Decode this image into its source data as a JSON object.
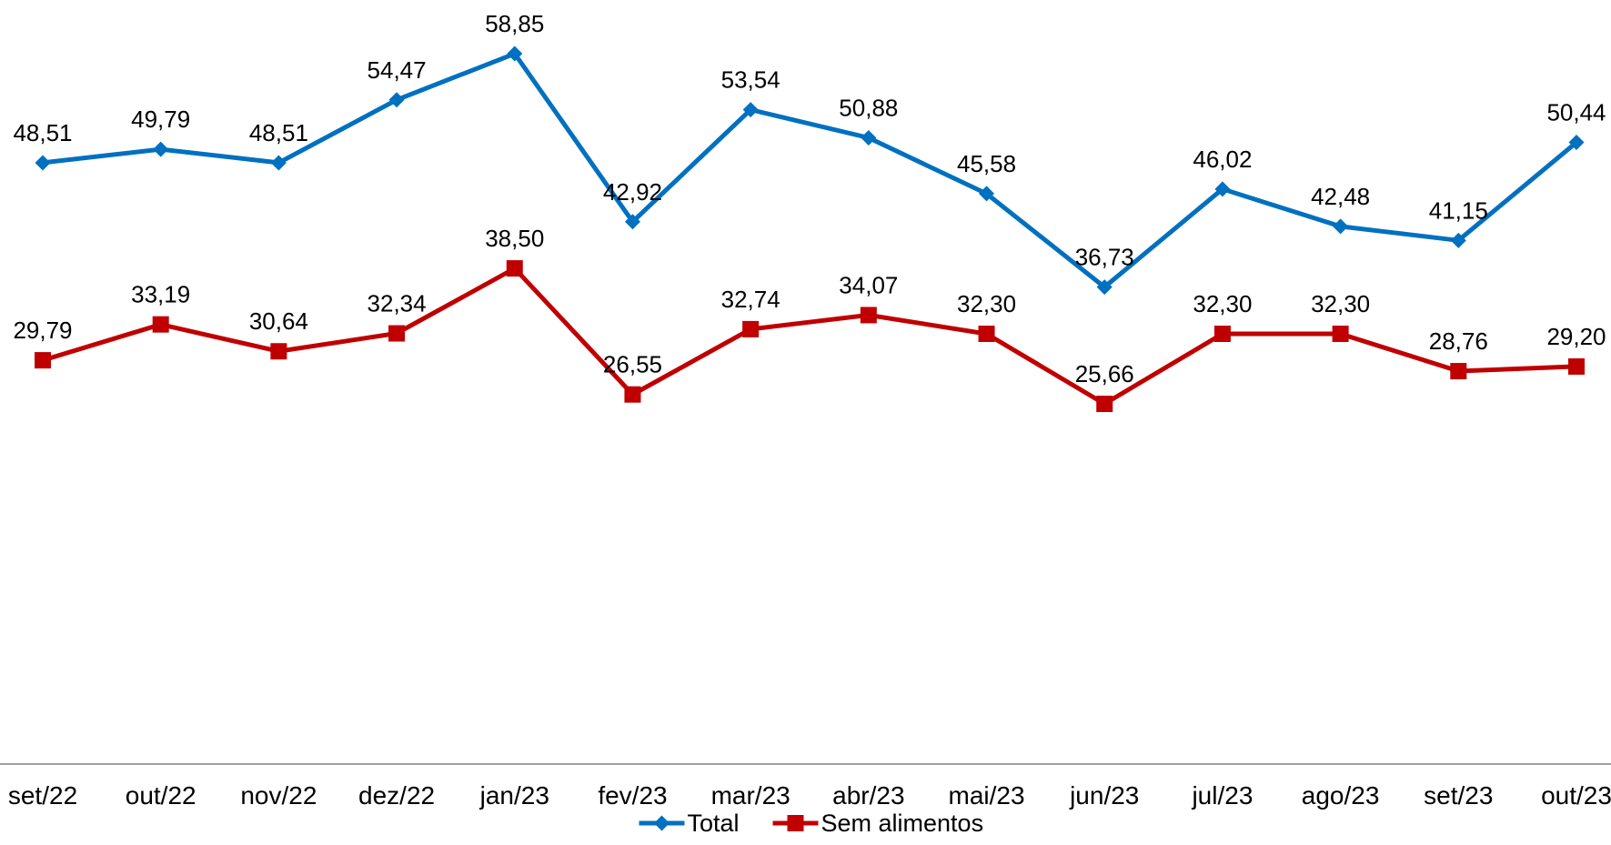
{
  "chart_data": {
    "type": "line",
    "categories": [
      "set/22",
      "out/22",
      "nov/22",
      "dez/22",
      "jan/23",
      "fev/23",
      "mar/23",
      "abr/23",
      "mai/23",
      "jun/23",
      "jul/23",
      "ago/23",
      "set/23",
      "out/23"
    ],
    "series": [
      {
        "name": "Total",
        "color": "#0070C0",
        "marker": "diamond",
        "values": [
          48.51,
          49.79,
          48.51,
          54.47,
          58.85,
          42.92,
          53.54,
          50.88,
          45.58,
          36.73,
          46.02,
          42.48,
          41.15,
          50.44
        ],
        "labels": [
          "48,51",
          "49,79",
          "48,51",
          "54,47",
          "58,85",
          "42,92",
          "53,54",
          "50,88",
          "45,58",
          "36,73",
          "46,02",
          "42,48",
          "41,15",
          "50,44"
        ]
      },
      {
        "name": "Sem alimentos",
        "color": "#C00000",
        "marker": "square",
        "values": [
          29.79,
          33.19,
          30.64,
          32.34,
          38.5,
          26.55,
          32.74,
          34.07,
          32.3,
          25.66,
          32.3,
          32.3,
          28.76,
          29.2
        ],
        "labels": [
          "29,79",
          "33,19",
          "30,64",
          "32,34",
          "38,50",
          "26,55",
          "32,74",
          "34,07",
          "32,30",
          "25,66",
          "32,30",
          "32,30",
          "28,76",
          "29,20"
        ]
      }
    ],
    "xlabel": "",
    "ylabel": "",
    "y_axis_visible": false,
    "grid": false,
    "legend_position": "bottom"
  }
}
